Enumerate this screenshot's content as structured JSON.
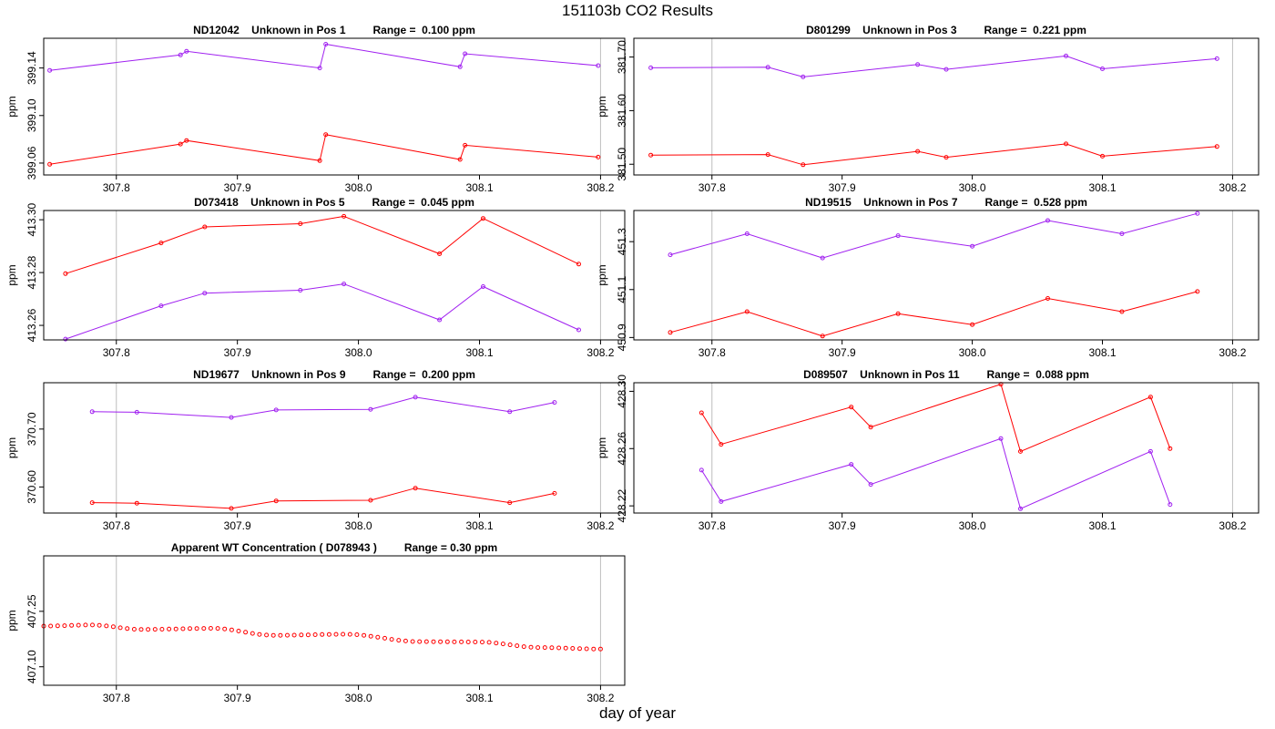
{
  "page": {
    "title": "151103b  CO2 Results",
    "xlabel": "day of year"
  },
  "colors": {
    "series_red": "#ff0000",
    "series_purple": "#a020f0",
    "grid": "#bebebe",
    "axis": "#000000"
  },
  "chart_data": [
    {
      "type": "line",
      "title": "ND12042    Unknown in Pos 1         Range =  0.100 ppm",
      "ylabel": "ppm",
      "xlim": [
        307.74,
        308.22
      ],
      "ylim": [
        399.05,
        399.165
      ],
      "xticks": [
        307.8,
        307.9,
        308.0,
        308.1,
        308.2
      ],
      "xtick_labels": [
        "307.8",
        "307.9",
        "308.0",
        "308.1",
        "308.2"
      ],
      "yticks": [
        399.06,
        399.1,
        399.14
      ],
      "ytick_labels": [
        "399.06",
        "399.10",
        "399.14"
      ],
      "vlines": [
        307.8,
        308.2
      ],
      "series": [
        {
          "name": "purple",
          "color": "#a020f0",
          "x": [
            307.745,
            307.853,
            307.858,
            307.968,
            307.973,
            308.084,
            308.088,
            308.198
          ],
          "y": [
            399.138,
            399.151,
            399.154,
            399.14,
            399.16,
            399.141,
            399.152,
            399.142
          ]
        },
        {
          "name": "red",
          "color": "#ff0000",
          "x": [
            307.745,
            307.853,
            307.858,
            307.968,
            307.973,
            308.084,
            308.088,
            308.198
          ],
          "y": [
            399.059,
            399.076,
            399.079,
            399.062,
            399.084,
            399.063,
            399.075,
            399.065
          ]
        }
      ]
    },
    {
      "type": "line",
      "title": "D801299    Unknown in Pos 3         Range =  0.221 ppm",
      "ylabel": "ppm",
      "xlim": [
        307.74,
        308.22
      ],
      "ylim": [
        381.48,
        381.735
      ],
      "xticks": [
        307.8,
        307.9,
        308.0,
        308.1,
        308.2
      ],
      "xtick_labels": [
        "307.8",
        "307.9",
        "308.0",
        "308.1",
        "308.2"
      ],
      "yticks": [
        381.5,
        381.6,
        381.7
      ],
      "ytick_labels": [
        "381.50",
        "381.60",
        "381.70"
      ],
      "vlines": [
        307.8,
        308.2
      ],
      "series": [
        {
          "name": "purple",
          "color": "#a020f0",
          "x": [
            307.753,
            307.843,
            307.87,
            307.958,
            307.98,
            308.072,
            308.1,
            308.188
          ],
          "y": [
            381.68,
            381.681,
            381.663,
            381.686,
            381.677,
            381.702,
            381.678,
            381.697
          ]
        },
        {
          "name": "red",
          "color": "#ff0000",
          "x": [
            307.753,
            307.843,
            307.87,
            307.958,
            307.98,
            308.072,
            308.1,
            308.188
          ],
          "y": [
            381.517,
            381.518,
            381.499,
            381.524,
            381.513,
            381.538,
            381.515,
            381.533
          ]
        }
      ]
    },
    {
      "type": "line",
      "title": "D073418    Unknown in Pos 5         Range =  0.045 ppm",
      "ylabel": "ppm",
      "xlim": [
        307.74,
        308.22
      ],
      "ylim": [
        413.2545,
        413.3035
      ],
      "xticks": [
        307.8,
        307.9,
        308.0,
        308.1,
        308.2
      ],
      "xtick_labels": [
        "307.8",
        "307.9",
        "308.0",
        "308.1",
        "308.2"
      ],
      "yticks": [
        413.26,
        413.28,
        413.3
      ],
      "ytick_labels": [
        "413.26",
        "413.28",
        "413.30"
      ],
      "vlines": [
        307.8,
        308.2
      ],
      "series": [
        {
          "name": "red",
          "color": "#ff0000",
          "x": [
            307.758,
            307.837,
            307.873,
            307.952,
            307.988,
            308.067,
            308.103,
            308.182
          ],
          "y": [
            413.2796,
            413.2912,
            413.2973,
            413.2985,
            413.3013,
            413.2871,
            413.3005,
            413.2832
          ]
        },
        {
          "name": "purple",
          "color": "#a020f0",
          "x": [
            307.758,
            307.837,
            307.873,
            307.952,
            307.988,
            308.067,
            308.103,
            308.182
          ],
          "y": [
            413.2548,
            413.2674,
            413.2722,
            413.2733,
            413.2757,
            413.2621,
            413.2747,
            413.2583
          ]
        }
      ]
    },
    {
      "type": "line",
      "title": "ND19515    Unknown in Pos 7         Range =  0.528 ppm",
      "ylabel": "ppm",
      "xlim": [
        307.74,
        308.22
      ],
      "ylim": [
        450.89,
        451.43
      ],
      "xticks": [
        307.8,
        307.9,
        308.0,
        308.1,
        308.2
      ],
      "xtick_labels": [
        "307.8",
        "307.9",
        "308.0",
        "308.1",
        "308.2"
      ],
      "yticks": [
        450.9,
        451.1,
        451.3
      ],
      "ytick_labels": [
        "450.9",
        "451.1",
        "451.3"
      ],
      "vlines": [
        307.8,
        308.2
      ],
      "series": [
        {
          "name": "purple",
          "color": "#a020f0",
          "x": [
            307.768,
            307.827,
            307.885,
            307.943,
            308.0,
            308.058,
            308.115,
            308.173
          ],
          "y": [
            451.245,
            451.333,
            451.232,
            451.325,
            451.281,
            451.388,
            451.333,
            451.418
          ]
        },
        {
          "name": "red",
          "color": "#ff0000",
          "x": [
            307.768,
            307.827,
            307.885,
            307.943,
            308.0,
            308.058,
            308.115,
            308.173
          ],
          "y": [
            450.921,
            451.008,
            450.906,
            450.999,
            450.954,
            451.063,
            451.008,
            451.092
          ]
        }
      ]
    },
    {
      "type": "line",
      "title": "ND19677    Unknown in Pos 9         Range =  0.200 ppm",
      "ylabel": "ppm",
      "xlim": [
        307.74,
        308.22
      ],
      "ylim": [
        370.555,
        370.78
      ],
      "xticks": [
        307.8,
        307.9,
        308.0,
        308.1,
        308.2
      ],
      "xtick_labels": [
        "307.8",
        "307.9",
        "308.0",
        "308.1",
        "308.2"
      ],
      "yticks": [
        370.6,
        370.7
      ],
      "ytick_labels": [
        "370.60",
        "370.70"
      ],
      "vlines": [
        307.8,
        308.2
      ],
      "series": [
        {
          "name": "purple",
          "color": "#a020f0",
          "x": [
            307.78,
            307.817,
            307.895,
            307.932,
            308.01,
            308.047,
            308.125,
            308.162
          ],
          "y": [
            370.73,
            370.729,
            370.72,
            370.733,
            370.734,
            370.755,
            370.73,
            370.746
          ]
        },
        {
          "name": "red",
          "color": "#ff0000",
          "x": [
            307.78,
            307.817,
            307.895,
            307.932,
            308.01,
            308.047,
            308.125,
            308.162
          ],
          "y": [
            370.573,
            370.572,
            370.563,
            370.576,
            370.577,
            370.598,
            370.573,
            370.589
          ]
        }
      ]
    },
    {
      "type": "line",
      "title": "D089507    Unknown in Pos 11         Range =  0.088 ppm",
      "ylabel": "ppm",
      "xlim": [
        307.74,
        308.22
      ],
      "ylim": [
        428.215,
        428.306
      ],
      "xticks": [
        307.8,
        307.9,
        308.0,
        308.1,
        308.2
      ],
      "xtick_labels": [
        "307.8",
        "307.9",
        "308.0",
        "308.1",
        "308.2"
      ],
      "yticks": [
        428.22,
        428.26,
        428.3
      ],
      "ytick_labels": [
        "428.22",
        "428.26",
        "428.30"
      ],
      "vlines": [
        307.8,
        308.2
      ],
      "series": [
        {
          "name": "red",
          "color": "#ff0000",
          "x": [
            307.792,
            307.807,
            307.907,
            307.922,
            308.022,
            308.037,
            308.137,
            308.152
          ],
          "y": [
            428.285,
            428.263,
            428.289,
            428.275,
            428.305,
            428.258,
            428.296,
            428.26
          ]
        },
        {
          "name": "purple",
          "color": "#a020f0",
          "x": [
            307.792,
            307.807,
            307.907,
            307.922,
            308.022,
            308.037,
            308.137,
            308.152
          ],
          "y": [
            428.245,
            428.223,
            428.249,
            428.235,
            428.267,
            428.218,
            428.258,
            428.221
          ]
        }
      ]
    },
    {
      "type": "scatter",
      "title": "Apparent WT Concentration ( D078943 )         Range = 0.30 ppm",
      "ylabel": "ppm",
      "xlim": [
        307.74,
        308.22
      ],
      "ylim": [
        407.05,
        407.4
      ],
      "xticks": [
        307.8,
        307.9,
        308.0,
        308.1,
        308.2
      ],
      "xtick_labels": [
        "307.8",
        "307.9",
        "308.0",
        "308.1",
        "308.2"
      ],
      "yticks": [
        407.1,
        407.25
      ],
      "ytick_labels": [
        "407.10",
        "407.25"
      ],
      "vlines": [
        307.8,
        308.2
      ],
      "series": [
        {
          "name": "red",
          "color": "#ff0000",
          "generator": {
            "x_start": 307.74,
            "x_end": 308.2,
            "count": 81,
            "x_knots": [
              307.74,
              307.78,
              307.82,
              307.88,
              307.93,
              307.99,
              308.05,
              308.1,
              308.15,
              308.2
            ],
            "y_knots": [
              407.21,
              407.213,
              407.201,
              407.204,
              407.185,
              407.188,
              407.168,
              407.167,
              407.152,
              407.148
            ]
          }
        }
      ]
    }
  ]
}
